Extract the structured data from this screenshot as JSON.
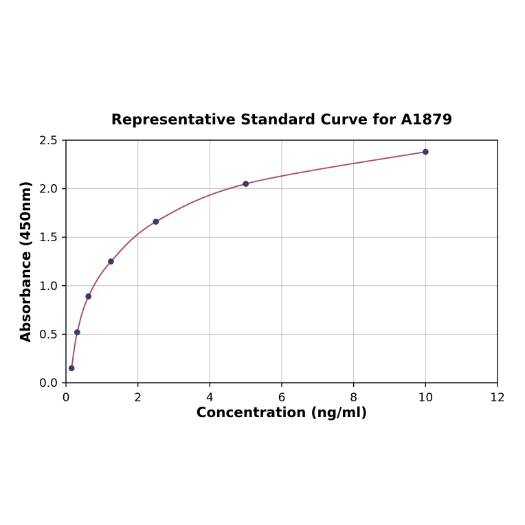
{
  "chart_data": {
    "type": "line",
    "title": "Representative Standard Curve for A1879",
    "xlabel": "Concentration (ng/ml)",
    "ylabel": "Absorbance (450nm)",
    "x": [
      0.156,
      0.313,
      0.625,
      1.25,
      2.5,
      5,
      10
    ],
    "y": [
      0.15,
      0.52,
      0.89,
      1.25,
      1.66,
      2.05,
      2.38
    ],
    "xlim": [
      0,
      12
    ],
    "ylim": [
      0,
      2.5
    ],
    "xticks": [
      0,
      2,
      4,
      6,
      8,
      10,
      12
    ],
    "xtick_labels": [
      "0",
      "2",
      "4",
      "6",
      "8",
      "10",
      "12"
    ],
    "yticks": [
      0,
      0.5,
      1.0,
      1.5,
      2.0,
      2.5
    ],
    "ytick_labels": [
      "0.0",
      "0.5",
      "1.0",
      "1.5",
      "2.0",
      "2.5"
    ],
    "grid": true,
    "legend": false,
    "line_color": "#b0486c",
    "marker_color": "#3b3b63",
    "grid_color": "#b9b9b9",
    "axis_color": "#000000",
    "background_color": "#ffffff"
  }
}
